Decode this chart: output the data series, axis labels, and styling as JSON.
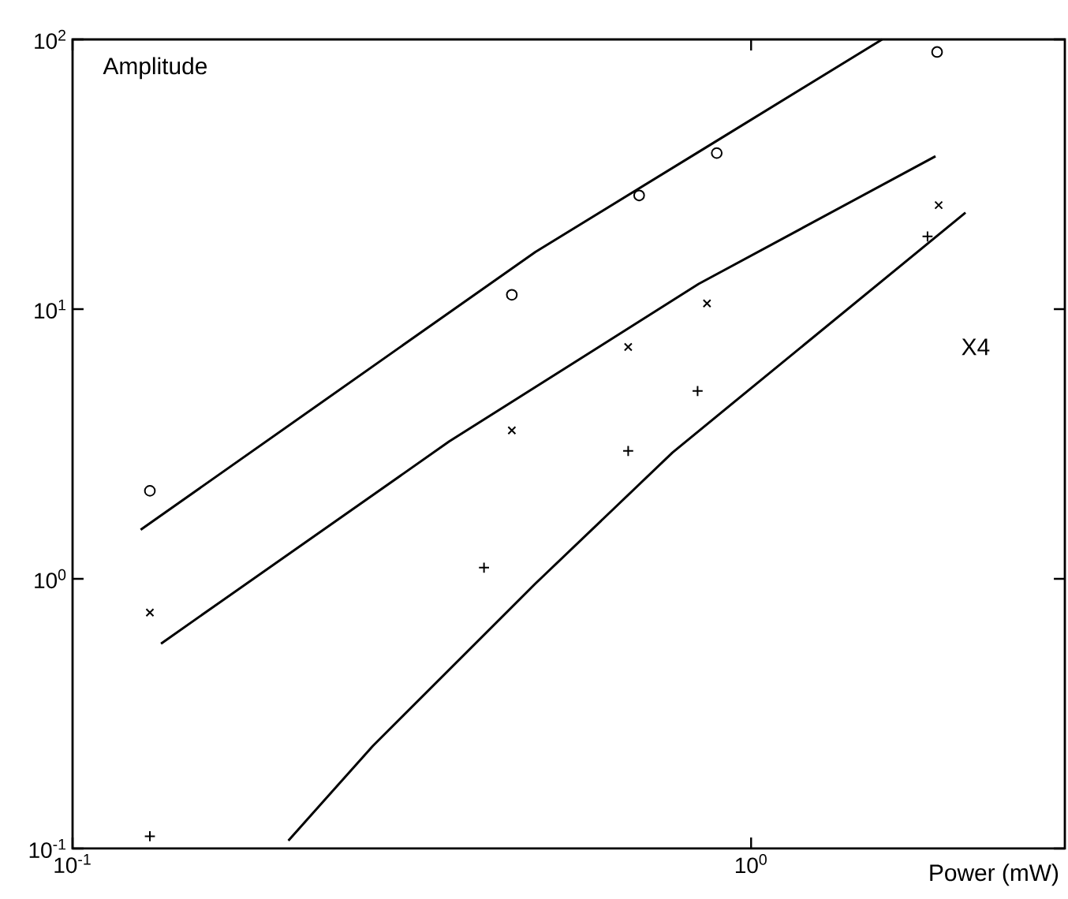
{
  "chart_data": {
    "type": "scatter",
    "xlabel": "Power (mW)",
    "ylabel": "Amplitude",
    "log": "xy",
    "grid": false,
    "xlim": [
      0.1,
      2.9
    ],
    "ylim": [
      0.1,
      100
    ],
    "xticks": [
      {
        "value": 0.1,
        "label": "10$^{-1}$"
      },
      {
        "value": 1,
        "label": "10$^{0}$"
      }
    ],
    "yticks": [
      {
        "value": 0.1,
        "label": "10$^{-1}$"
      },
      {
        "value": 1,
        "label": "10$^{0}$"
      },
      {
        "value": 10,
        "label": "10$^{1}$"
      },
      {
        "value": 100,
        "label": "10$^{2}$"
      }
    ],
    "annotations": [
      "X4"
    ],
    "series": [
      {
        "marker": "circle",
        "color": "#000000",
        "x": [
          0.13,
          0.444,
          0.684,
          0.89,
          1.88
        ],
        "values": [
          2.12,
          11.3,
          26.4,
          37.9,
          89.8
        ]
      },
      {
        "marker": "cross",
        "color": "#000000",
        "x": [
          0.13,
          0.444,
          0.659,
          0.861,
          1.89
        ],
        "values": [
          0.75,
          3.55,
          7.24,
          10.5,
          24.3
        ]
      },
      {
        "marker": "plus",
        "color": "#000000",
        "x": [
          0.13,
          0.404,
          0.659,
          0.834,
          1.82
        ],
        "values": [
          0.111,
          1.1,
          2.98,
          4.97,
          18.6
        ]
      },
      {
        "type": "line",
        "marker": "none",
        "line_style": "solid",
        "color": "#000000",
        "x": [
          0.126,
          0.481,
          0.885,
          1.56
        ],
        "values": [
          1.52,
          16.3,
          41.7,
          100
        ]
      },
      {
        "type": "line",
        "marker": "none",
        "line_style": "solid",
        "color": "#000000",
        "x": [
          0.135,
          0.359,
          0.837,
          1.87
        ],
        "values": [
          0.575,
          3.23,
          12.4,
          36.9
        ]
      },
      {
        "type": "line",
        "marker": "none",
        "line_style": "solid",
        "color": "#000000",
        "x": [
          0.208,
          0.277,
          0.481,
          0.766,
          2.07
        ],
        "values": [
          0.107,
          0.24,
          0.96,
          2.94,
          22.8
        ]
      }
    ]
  }
}
